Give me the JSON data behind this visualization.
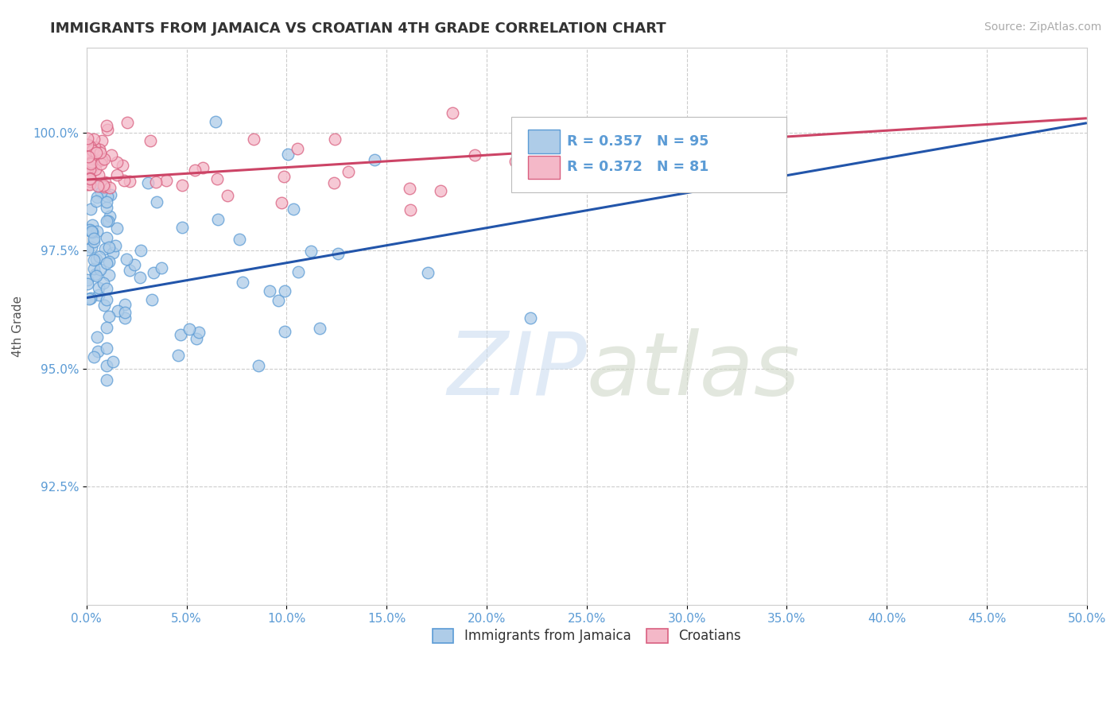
{
  "title": "IMMIGRANTS FROM JAMAICA VS CROATIAN 4TH GRADE CORRELATION CHART",
  "source_text": "Source: ZipAtlas.com",
  "ylabel": "4th Grade",
  "xlim": [
    0.0,
    50.0
  ],
  "ylim": [
    90.0,
    101.8
  ],
  "xtick_vals": [
    0.0,
    5.0,
    10.0,
    15.0,
    20.0,
    25.0,
    30.0,
    35.0,
    40.0,
    45.0,
    50.0
  ],
  "ytick_vals": [
    92.5,
    95.0,
    97.5,
    100.0
  ],
  "blue_R": 0.357,
  "blue_N": 95,
  "pink_R": 0.372,
  "pink_N": 81,
  "blue_color": "#aecce8",
  "blue_edge": "#5b9bd5",
  "pink_color": "#f4b8c8",
  "pink_edge": "#d96080",
  "blue_line_color": "#2255aa",
  "pink_line_color": "#cc4466",
  "watermark_zip": "ZIP",
  "watermark_atlas": "atlas",
  "legend_label_blue": "Immigrants from Jamaica",
  "legend_label_pink": "Croatians",
  "blue_trend_x0": 0.0,
  "blue_trend_y0": 96.5,
  "blue_trend_x1": 50.0,
  "blue_trend_y1": 100.2,
  "pink_trend_x0": 0.0,
  "pink_trend_y0": 99.0,
  "pink_trend_x1": 50.0,
  "pink_trend_y1": 100.3
}
